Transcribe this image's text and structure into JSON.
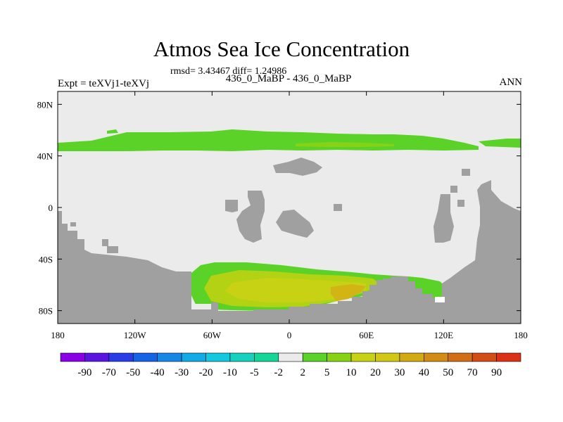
{
  "header": {
    "title": "Atmos Sea Ice Concentration",
    "stats": "rmsd= 3.43467 diff= 1.24986",
    "left": "Expt = teXVj1-teXVj",
    "center": "436_0_MaBP - 436_0_MaBP",
    "right": "ANN"
  },
  "chart_data": {
    "type": "heatmap",
    "title": "Atmos Sea Ice Concentration",
    "subtitle": "436_0_MaBP - 436_0_MaBP",
    "xlabel": "",
    "ylabel": "",
    "xlim": [
      -180,
      180
    ],
    "ylim": [
      -90,
      90
    ],
    "x_ticks": [
      {
        "value": -180,
        "label": "180"
      },
      {
        "value": -120,
        "label": "120W"
      },
      {
        "value": -60,
        "label": "60W"
      },
      {
        "value": 0,
        "label": "0"
      },
      {
        "value": 60,
        "label": "60E"
      },
      {
        "value": 120,
        "label": "120E"
      },
      {
        "value": 180,
        "label": "180"
      }
    ],
    "y_ticks": [
      {
        "value": 80,
        "label": "80N"
      },
      {
        "value": 40,
        "label": "40N"
      },
      {
        "value": 0,
        "label": "0"
      },
      {
        "value": -40,
        "label": "40S"
      },
      {
        "value": -80,
        "label": "80S"
      }
    ],
    "colorbar": {
      "labels": [
        "-90",
        "-70",
        "-50",
        "-40",
        "-30",
        "-20",
        "-10",
        "-5",
        "-2",
        "2",
        "5",
        "10",
        "20",
        "30",
        "40",
        "50",
        "70",
        "90"
      ],
      "colors": [
        "#8a00e6",
        "#5a14e0",
        "#2a3ce6",
        "#1464e6",
        "#1488e6",
        "#14aae6",
        "#14c8e0",
        "#14d2be",
        "#14d696",
        "#ebebeb",
        "#5ad228",
        "#87d214",
        "#c8d214",
        "#d2c814",
        "#d2aa14",
        "#d28c14",
        "#d26e14",
        "#d24e14",
        "#dc3214"
      ]
    },
    "fields": {
      "background": "#ebebeb",
      "land": "#a0a0a0",
      "green": "#5ad228",
      "yellow_green": "#b4d214",
      "yellow": "#c8d214",
      "gold": "#d2b414"
    }
  }
}
